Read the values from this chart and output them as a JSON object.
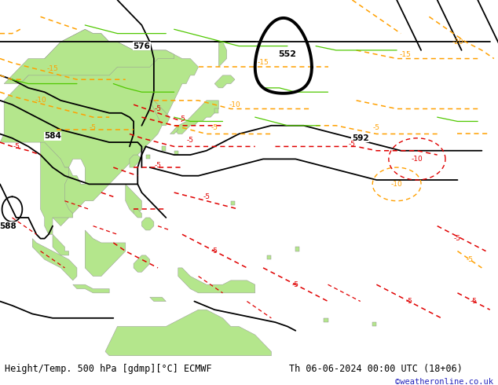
{
  "title_left": "Height/Temp. 500 hPa [gdmp][°C] ECMWF",
  "title_right": "Th 06-06-2024 00:00 UTC (18+06)",
  "credit": "©weatheronline.co.uk",
  "ocean_color": "#c8c8c8",
  "land_green": "#b4e68c",
  "land_border": "#969696",
  "contour_black": "#000000",
  "contour_orange": "#ffa000",
  "contour_red": "#e00000",
  "contour_green": "#50c800",
  "text_color": "#000000",
  "credit_color": "#2222bb",
  "font_size_title": 8.5,
  "font_size_credit": 7.5,
  "figsize": [
    6.34,
    4.9
  ],
  "dpi": 100,
  "extent": [
    87,
    210,
    -23,
    62
  ]
}
